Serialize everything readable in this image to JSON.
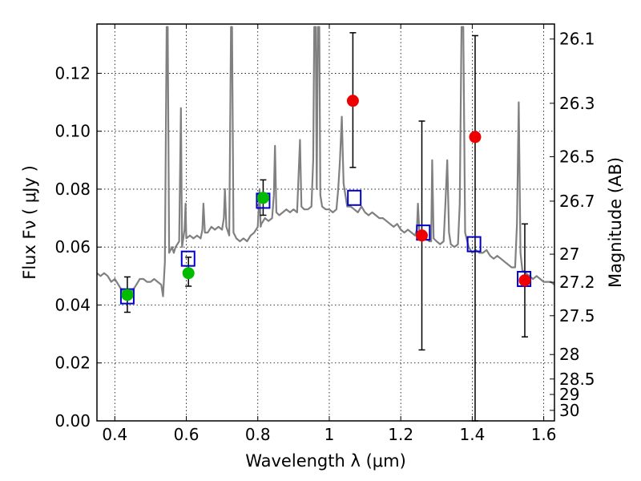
{
  "chart_data": {
    "type": "scatter",
    "title": "",
    "xlabel": "Wavelength  λ (μm)",
    "ylabel": "Flux  Fν  ( μJy )",
    "y2label": "Magnitude (AB)",
    "xlim": [
      0.35,
      1.63
    ],
    "ylim": [
      0.0,
      0.137
    ],
    "grid": true,
    "x_ticks": [
      0.4,
      0.6,
      0.8,
      1.0,
      1.2,
      1.4,
      1.6
    ],
    "x_tick_labels": [
      "0.4",
      "0.6",
      "0.8",
      "1",
      "1.2",
      "1.4",
      "1.6"
    ],
    "y_ticks": [
      0.0,
      0.02,
      0.04,
      0.06,
      0.08,
      0.1,
      0.12
    ],
    "y_tick_labels": [
      "0.00",
      "0.02",
      "0.04",
      "0.06",
      "0.08",
      "0.10",
      "0.12"
    ],
    "mag_ticks": [
      26.1,
      26.3,
      26.5,
      26.7,
      27,
      27.2,
      27.5,
      28,
      28.5,
      29,
      30
    ],
    "mag_tick_labels": [
      "26.1",
      "26.3",
      "26.5",
      "26.7",
      "27",
      "27.2",
      "27.5",
      "28",
      "28.5",
      "29",
      "30"
    ],
    "colors": {
      "model": "#808080",
      "observed_optical": "#00bb00",
      "observed_ir": "#ee0000",
      "model_bands": "#0000cc",
      "errorbar": "#000000"
    },
    "series": [
      {
        "name": "model_sed",
        "style": "line",
        "points": [
          [
            0.35,
            0.051
          ],
          [
            0.36,
            0.05
          ],
          [
            0.37,
            0.051
          ],
          [
            0.38,
            0.05
          ],
          [
            0.39,
            0.048
          ],
          [
            0.4,
            0.049
          ],
          [
            0.41,
            0.047
          ],
          [
            0.42,
            0.045
          ],
          [
            0.43,
            0.044
          ],
          [
            0.44,
            0.044
          ],
          [
            0.45,
            0.045
          ],
          [
            0.46,
            0.047
          ],
          [
            0.47,
            0.049
          ],
          [
            0.48,
            0.049
          ],
          [
            0.49,
            0.048
          ],
          [
            0.5,
            0.048
          ],
          [
            0.51,
            0.049
          ],
          [
            0.52,
            0.048
          ],
          [
            0.53,
            0.047
          ],
          [
            0.535,
            0.043
          ],
          [
            0.54,
            0.055
          ],
          [
            0.545,
            0.136
          ],
          [
            0.548,
            0.136
          ],
          [
            0.552,
            0.058
          ],
          [
            0.56,
            0.06
          ],
          [
            0.565,
            0.058
          ],
          [
            0.57,
            0.06
          ],
          [
            0.58,
            0.062
          ],
          [
            0.585,
            0.108
          ],
          [
            0.588,
            0.06
          ],
          [
            0.595,
            0.066
          ],
          [
            0.598,
            0.075
          ],
          [
            0.6,
            0.063
          ],
          [
            0.61,
            0.064
          ],
          [
            0.62,
            0.063
          ],
          [
            0.63,
            0.064
          ],
          [
            0.64,
            0.063
          ],
          [
            0.645,
            0.066
          ],
          [
            0.648,
            0.075
          ],
          [
            0.652,
            0.065
          ],
          [
            0.66,
            0.065
          ],
          [
            0.67,
            0.067
          ],
          [
            0.68,
            0.066
          ],
          [
            0.69,
            0.067
          ],
          [
            0.7,
            0.066
          ],
          [
            0.705,
            0.07
          ],
          [
            0.708,
            0.08
          ],
          [
            0.712,
            0.067
          ],
          [
            0.72,
            0.064
          ],
          [
            0.725,
            0.136
          ],
          [
            0.728,
            0.136
          ],
          [
            0.732,
            0.065
          ],
          [
            0.74,
            0.063
          ],
          [
            0.75,
            0.062
          ],
          [
            0.76,
            0.063
          ],
          [
            0.77,
            0.062
          ],
          [
            0.78,
            0.064
          ],
          [
            0.79,
            0.065
          ],
          [
            0.8,
            0.067
          ],
          [
            0.805,
            0.08
          ],
          [
            0.808,
            0.067
          ],
          [
            0.81,
            0.068
          ],
          [
            0.82,
            0.07
          ],
          [
            0.83,
            0.069
          ],
          [
            0.84,
            0.07
          ],
          [
            0.845,
            0.078
          ],
          [
            0.848,
            0.095
          ],
          [
            0.852,
            0.072
          ],
          [
            0.86,
            0.071
          ],
          [
            0.87,
            0.072
          ],
          [
            0.88,
            0.073
          ],
          [
            0.89,
            0.072
          ],
          [
            0.9,
            0.073
          ],
          [
            0.91,
            0.072
          ],
          [
            0.918,
            0.097
          ],
          [
            0.922,
            0.074
          ],
          [
            0.93,
            0.073
          ],
          [
            0.94,
            0.073
          ],
          [
            0.95,
            0.074
          ],
          [
            0.955,
            0.09
          ],
          [
            0.958,
            0.136
          ],
          [
            0.962,
            0.136
          ],
          [
            0.965,
            0.08
          ],
          [
            0.968,
            0.136
          ],
          [
            0.972,
            0.136
          ],
          [
            0.975,
            0.078
          ],
          [
            0.98,
            0.074
          ],
          [
            0.99,
            0.073
          ],
          [
            1.0,
            0.073
          ],
          [
            1.01,
            0.072
          ],
          [
            1.02,
            0.073
          ],
          [
            1.025,
            0.08
          ],
          [
            1.03,
            0.09
          ],
          [
            1.035,
            0.105
          ],
          [
            1.04,
            0.082
          ],
          [
            1.05,
            0.074
          ],
          [
            1.06,
            0.074
          ],
          [
            1.07,
            0.073
          ],
          [
            1.08,
            0.072
          ],
          [
            1.09,
            0.074
          ],
          [
            1.1,
            0.072
          ],
          [
            1.11,
            0.071
          ],
          [
            1.12,
            0.072
          ],
          [
            1.13,
            0.071
          ],
          [
            1.14,
            0.07
          ],
          [
            1.15,
            0.07
          ],
          [
            1.16,
            0.069
          ],
          [
            1.17,
            0.068
          ],
          [
            1.18,
            0.067
          ],
          [
            1.19,
            0.068
          ],
          [
            1.2,
            0.066
          ],
          [
            1.21,
            0.065
          ],
          [
            1.22,
            0.066
          ],
          [
            1.23,
            0.065
          ],
          [
            1.24,
            0.064
          ],
          [
            1.245,
            0.066
          ],
          [
            1.248,
            0.075
          ],
          [
            1.252,
            0.065
          ],
          [
            1.26,
            0.064
          ],
          [
            1.27,
            0.063
          ],
          [
            1.28,
            0.062
          ],
          [
            1.285,
            0.062
          ],
          [
            1.288,
            0.09
          ],
          [
            1.292,
            0.063
          ],
          [
            1.3,
            0.062
          ],
          [
            1.31,
            0.061
          ],
          [
            1.32,
            0.062
          ],
          [
            1.325,
            0.075
          ],
          [
            1.33,
            0.09
          ],
          [
            1.335,
            0.065
          ],
          [
            1.34,
            0.061
          ],
          [
            1.35,
            0.06
          ],
          [
            1.36,
            0.061
          ],
          [
            1.365,
            0.075
          ],
          [
            1.37,
            0.136
          ],
          [
            1.375,
            0.136
          ],
          [
            1.38,
            0.065
          ],
          [
            1.39,
            0.06
          ],
          [
            1.4,
            0.058
          ],
          [
            1.41,
            0.059
          ],
          [
            1.42,
            0.058
          ],
          [
            1.43,
            0.058
          ],
          [
            1.44,
            0.059
          ],
          [
            1.45,
            0.057
          ],
          [
            1.46,
            0.056
          ],
          [
            1.47,
            0.057
          ],
          [
            1.48,
            0.056
          ],
          [
            1.49,
            0.055
          ],
          [
            1.5,
            0.054
          ],
          [
            1.51,
            0.053
          ],
          [
            1.52,
            0.053
          ],
          [
            1.525,
            0.068
          ],
          [
            1.53,
            0.11
          ],
          [
            1.535,
            0.058
          ],
          [
            1.54,
            0.052
          ],
          [
            1.55,
            0.051
          ],
          [
            1.56,
            0.05
          ],
          [
            1.57,
            0.049
          ],
          [
            1.58,
            0.05
          ],
          [
            1.59,
            0.049
          ],
          [
            1.6,
            0.048
          ],
          [
            1.61,
            0.048
          ],
          [
            1.62,
            0.048
          ],
          [
            1.63,
            0.047
          ]
        ]
      },
      {
        "name": "model_band_fluxes",
        "style": "open-square",
        "points": [
          [
            0.435,
            0.043
          ],
          [
            0.605,
            0.056
          ],
          [
            0.815,
            0.076
          ],
          [
            1.07,
            0.077
          ],
          [
            1.263,
            0.065
          ],
          [
            1.405,
            0.061
          ],
          [
            1.545,
            0.049
          ]
        ]
      },
      {
        "name": "observed_optical",
        "style": "filled-circle",
        "points": [
          [
            0.435,
            0.0435
          ],
          [
            0.606,
            0.051
          ],
          [
            0.815,
            0.077
          ]
        ],
        "errors": [
          [
            0.0375,
            0.0497
          ],
          [
            0.0465,
            0.0565
          ],
          [
            0.071,
            0.0832
          ]
        ]
      },
      {
        "name": "observed_ir",
        "style": "filled-circle",
        "points": [
          [
            1.066,
            0.1105
          ],
          [
            1.259,
            0.064
          ],
          [
            1.408,
            0.098
          ],
          [
            1.547,
            0.0485
          ]
        ],
        "errors": [
          [
            0.0875,
            0.134
          ],
          [
            0.0245,
            0.1035
          ],
          [
            0.0,
            0.133
          ],
          [
            0.029,
            0.068
          ]
        ]
      }
    ]
  }
}
